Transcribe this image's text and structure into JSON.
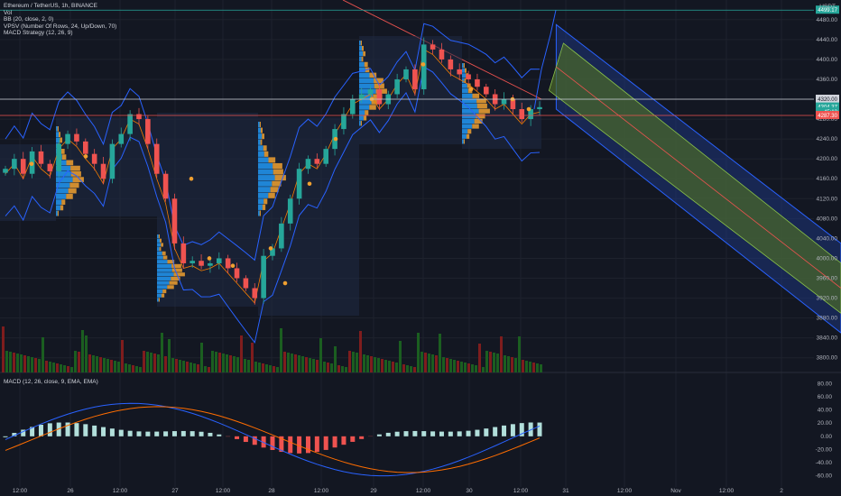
{
  "legend": {
    "symbol": "Ethereum / TetherUS, 1h, BINANCE",
    "vol": "Vol",
    "bb": "BB (20, close, 2, 0)",
    "vpsv": "VPSV (Number Of Rows, 24, Up/Down, 70)",
    "macd_strategy": "MACD Strategy (12, 26, 9)"
  },
  "currency": "USDT",
  "macd_label": "MACD (12, 26, close, 9, EMA, EMA)",
  "colors": {
    "background": "#131722",
    "up": "#26a69a",
    "down": "#ef5350",
    "bb_line": "#2962ff",
    "vol_up": "#1b5e20",
    "vol_down": "#7f1d1d",
    "channel_fill": "#1f3b8f",
    "channel_mid": "#4a6a2a",
    "profile_up": "#2196f3",
    "profile_down": "#f0a030"
  },
  "chart_data": [
    {
      "type": "candlestick",
      "title": "",
      "y_ticks": [
        "4480.00",
        "4440.00",
        "4400.00",
        "4360.00",
        "4320.00",
        "4280.00",
        "4240.00",
        "4200.00",
        "4160.00",
        "4120.00",
        "4080.00",
        "4040.00",
        "4000.00",
        "3960.00",
        "3920.00",
        "3880.00",
        "3840.00",
        "3800.00"
      ],
      "x_ticks": [
        "12:00",
        "26",
        "12:00",
        "27",
        "12:00",
        "28",
        "12:00",
        "29",
        "12:00",
        "30",
        "12:00",
        "31",
        "12:00",
        "Nov",
        "12:00",
        "2"
      ],
      "ylim": [
        3785,
        4505
      ],
      "price_labels": [
        {
          "text": "4499.17",
          "kind": "green"
        },
        {
          "text": "4320.00",
          "kind": "white"
        },
        {
          "text": "4304.37",
          "kind": "green"
        },
        {
          "text": "45:13",
          "kind": "green"
        },
        {
          "text": "4287.30",
          "kind": "red"
        }
      ],
      "channel": {
        "upper_start": [
          0.7,
          4470
        ],
        "upper_end": [
          1.0,
          4030
        ],
        "lower_start": [
          0.7,
          4300
        ],
        "lower_end": [
          1.0,
          3850
        ]
      },
      "close_path": [
        4180,
        4200,
        4170,
        4215,
        4190,
        4175,
        4230,
        4250,
        4235,
        4210,
        4190,
        4160,
        4230,
        4250,
        4290,
        4280,
        4230,
        4170,
        4120,
        4030,
        3990,
        3995,
        3985,
        3990,
        4000,
        3980,
        3960,
        3940,
        3920,
        4005,
        4020,
        4070,
        4120,
        4180,
        4200,
        4190,
        4220,
        4260,
        4290,
        4320,
        4330,
        4340,
        4310,
        4330,
        4360,
        4380,
        4340,
        4430,
        4420,
        4400,
        4380,
        4370,
        4360,
        4345,
        4330,
        4310,
        4320,
        4300,
        4280,
        4300,
        4304
      ]
    },
    {
      "type": "bar",
      "title": "",
      "series": [
        {
          "name": "Vol"
        }
      ]
    },
    {
      "type": "line",
      "title": "",
      "y_ticks": [
        "80.00",
        "60.00",
        "40.00",
        "20.00",
        "0.00",
        "-20.00",
        "-40.00",
        "-60.00"
      ],
      "ylim": [
        -70,
        90
      ]
    }
  ]
}
